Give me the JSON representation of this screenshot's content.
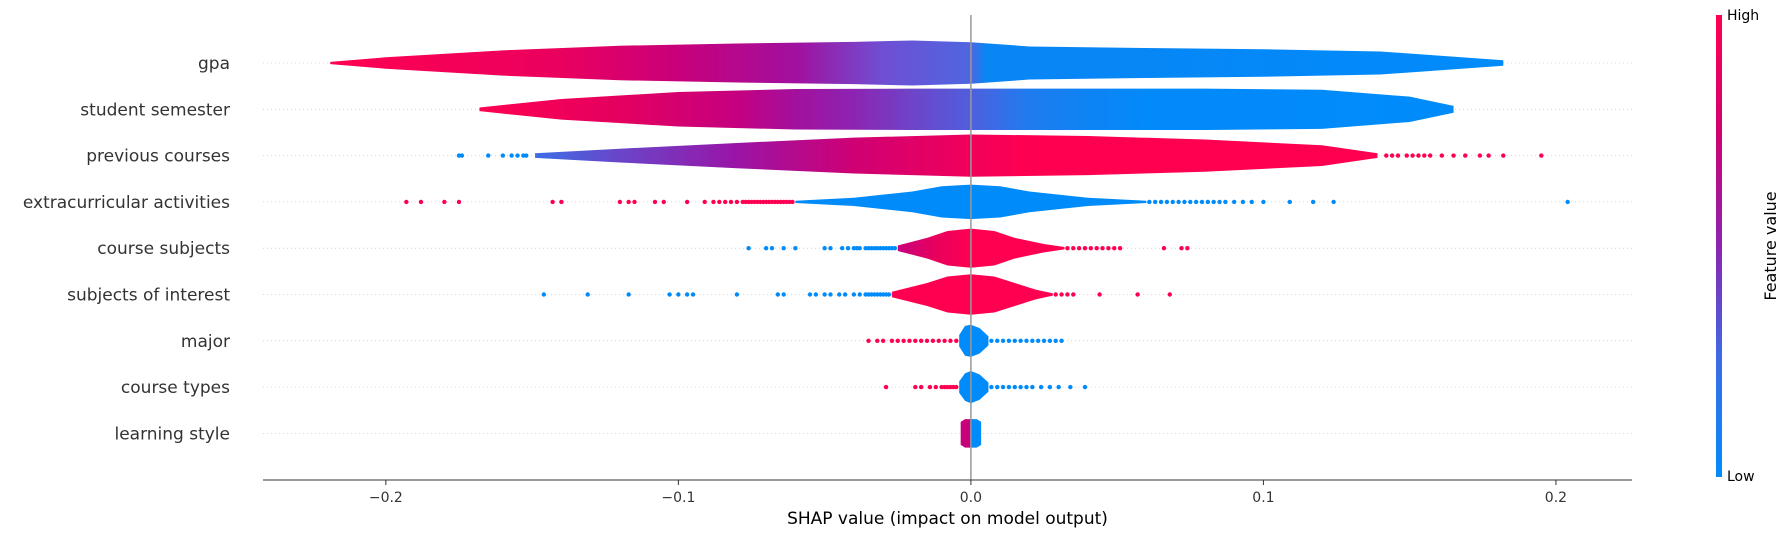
{
  "chart_data": {
    "type": "violin",
    "xlabel": "SHAP value (impact on model output)",
    "xlim": [
      -0.242,
      0.226
    ],
    "xticks": [
      -0.2,
      -0.1,
      0.0,
      0.1,
      0.2
    ],
    "xtick_labels": [
      "−0.2",
      "−0.1",
      "0.0",
      "0.1",
      "0.2"
    ],
    "colorbar": {
      "title": "Feature value",
      "high_label": "High",
      "low_label": "Low",
      "high_color": "#ff0051",
      "low_color": "#008bfb"
    },
    "features": [
      {
        "name": "gpa",
        "range": [
          -0.219,
          0.182
        ],
        "width": 0.98,
        "shape_x": [
          -0.219,
          -0.2,
          -0.16,
          -0.12,
          -0.08,
          -0.04,
          -0.02,
          0.0,
          0.02,
          0.06,
          0.1,
          0.14,
          0.182
        ],
        "shape_w": [
          0.05,
          0.25,
          0.55,
          0.75,
          0.85,
          0.92,
          0.98,
          0.9,
          0.72,
          0.65,
          0.6,
          0.5,
          0.12
        ],
        "colors": [
          [
            -0.219,
            "#ff0051"
          ],
          [
            -0.14,
            "#ea005e"
          ],
          [
            -0.1,
            "#c8007b"
          ],
          [
            -0.06,
            "#a1109e"
          ],
          [
            -0.03,
            "#6f4fd3"
          ],
          [
            0.0,
            "#4f66e0"
          ],
          [
            0.005,
            "#0a85f4"
          ],
          [
            0.182,
            "#008bfb"
          ]
        ],
        "points_low": [],
        "points_high": []
      },
      {
        "name": "student semester",
        "range": [
          -0.168,
          0.165
        ],
        "width": 0.9,
        "shape_x": [
          -0.168,
          -0.14,
          -0.1,
          -0.06,
          -0.02,
          0.0,
          0.04,
          0.08,
          0.12,
          0.15,
          0.165
        ],
        "shape_w": [
          0.08,
          0.45,
          0.75,
          0.88,
          0.9,
          0.9,
          0.9,
          0.9,
          0.85,
          0.55,
          0.15
        ],
        "colors": [
          [
            -0.168,
            "#ff0051"
          ],
          [
            -0.12,
            "#e4005f"
          ],
          [
            -0.08,
            "#c50080"
          ],
          [
            -0.06,
            "#a2109d"
          ],
          [
            -0.04,
            "#8d24b2"
          ],
          [
            -0.02,
            "#6e44c8"
          ],
          [
            0.0,
            "#4f5fde"
          ],
          [
            0.02,
            "#1f7cef"
          ],
          [
            0.04,
            "#0e83f4"
          ],
          [
            0.06,
            "#038afa"
          ],
          [
            0.165,
            "#008bfb"
          ]
        ],
        "points_low": [],
        "points_high": []
      },
      {
        "name": "previous courses",
        "range": [
          -0.149,
          0.139
        ],
        "width": 0.92,
        "shape_x": [
          -0.149,
          -0.12,
          -0.08,
          -0.04,
          0.0,
          0.04,
          0.08,
          0.12,
          0.139
        ],
        "shape_w": [
          0.1,
          0.3,
          0.55,
          0.78,
          0.92,
          0.85,
          0.7,
          0.45,
          0.1
        ],
        "colors": [
          [
            -0.149,
            "#3b6fe6"
          ],
          [
            -0.12,
            "#6a45c9"
          ],
          [
            -0.08,
            "#9a14a6"
          ],
          [
            -0.04,
            "#cf0074"
          ],
          [
            0.0,
            "#f1005a"
          ],
          [
            0.02,
            "#ff0051"
          ],
          [
            0.139,
            "#ff0051"
          ]
        ],
        "points_low": [
          -0.175,
          -0.174,
          -0.165,
          -0.16,
          -0.157,
          -0.155,
          -0.153,
          -0.152
        ],
        "points_high": [
          0.142,
          0.144,
          0.146,
          0.149,
          0.151,
          0.153,
          0.155,
          0.157,
          0.161,
          0.165,
          0.169,
          0.174,
          0.177,
          0.182,
          0.195
        ]
      },
      {
        "name": "extracurricular activities",
        "range": [
          -0.06,
          0.06
        ],
        "width": 0.75,
        "shape_x": [
          -0.06,
          -0.04,
          -0.02,
          -0.01,
          0.0,
          0.01,
          0.02,
          0.04,
          0.06
        ],
        "shape_w": [
          0.05,
          0.18,
          0.45,
          0.68,
          0.75,
          0.68,
          0.45,
          0.18,
          0.05
        ],
        "colors": [
          [
            -0.06,
            "#008bfb"
          ],
          [
            0.06,
            "#008bfb"
          ]
        ],
        "points_low": [
          0.061,
          0.063,
          0.065,
          0.067,
          0.069,
          0.071,
          0.073,
          0.075,
          0.077,
          0.079,
          0.081,
          0.083,
          0.085,
          0.087,
          0.09,
          0.093,
          0.096,
          0.1,
          0.109,
          0.117,
          0.124,
          0.204
        ],
        "points_high": [
          -0.193,
          -0.188,
          -0.18,
          -0.175,
          -0.143,
          -0.14,
          -0.12,
          -0.117,
          -0.115,
          -0.108,
          -0.105,
          -0.097,
          -0.091,
          -0.088,
          -0.086,
          -0.084,
          -0.082,
          -0.08,
          -0.078,
          -0.077,
          -0.076,
          -0.075,
          -0.074,
          -0.073,
          -0.072,
          -0.071,
          -0.07,
          -0.069,
          -0.068,
          -0.067,
          -0.066,
          -0.065,
          -0.064,
          -0.063,
          -0.062,
          -0.061
        ]
      },
      {
        "name": "course subjects",
        "range": [
          -0.025,
          0.032
        ],
        "width": 0.85,
        "shape_x": [
          -0.025,
          -0.015,
          -0.008,
          0.0,
          0.008,
          0.015,
          0.025,
          0.032
        ],
        "shape_w": [
          0.12,
          0.45,
          0.75,
          0.85,
          0.75,
          0.45,
          0.18,
          0.05
        ],
        "colors": [
          [
            -0.025,
            "#c8007b"
          ],
          [
            -0.012,
            "#e8005d"
          ],
          [
            0.0,
            "#ff0051"
          ],
          [
            0.032,
            "#ff0051"
          ]
        ],
        "points_low": [
          -0.076,
          -0.07,
          -0.068,
          -0.064,
          -0.06,
          -0.05,
          -0.048,
          -0.044,
          -0.042,
          -0.04,
          -0.039,
          -0.038,
          -0.036,
          -0.035,
          -0.034,
          -0.033,
          -0.032,
          -0.031,
          -0.03,
          -0.029,
          -0.028,
          -0.027,
          -0.026
        ],
        "points_high": [
          0.033,
          0.035,
          0.037,
          0.039,
          0.041,
          0.043,
          0.045,
          0.047,
          0.049,
          0.051,
          0.066,
          0.072,
          0.074
        ]
      },
      {
        "name": "subjects of interest",
        "range": [
          -0.027,
          0.028
        ],
        "width": 0.88,
        "shape_x": [
          -0.027,
          -0.015,
          -0.008,
          0.0,
          0.008,
          0.015,
          0.022,
          0.028
        ],
        "shape_w": [
          0.12,
          0.5,
          0.78,
          0.88,
          0.78,
          0.5,
          0.22,
          0.05
        ],
        "colors": [
          [
            -0.027,
            "#ff0051"
          ],
          [
            0.028,
            "#ff0051"
          ]
        ],
        "points_low": [
          -0.146,
          -0.131,
          -0.117,
          -0.103,
          -0.1,
          -0.097,
          -0.095,
          -0.08,
          -0.066,
          -0.064,
          -0.055,
          -0.053,
          -0.05,
          -0.048,
          -0.045,
          -0.043,
          -0.04,
          -0.038,
          -0.036,
          -0.035,
          -0.034,
          -0.033,
          -0.032,
          -0.031,
          -0.03,
          -0.029,
          -0.028
        ],
        "points_high": [
          0.029,
          0.031,
          0.033,
          0.035,
          0.044,
          0.057,
          0.068
        ]
      },
      {
        "name": "major",
        "range": [
          -0.004,
          0.006
        ],
        "width": 0.7,
        "shape_x": [
          -0.004,
          -0.002,
          0.0,
          0.003,
          0.006
        ],
        "shape_w": [
          0.25,
          0.65,
          0.7,
          0.55,
          0.2
        ],
        "colors": [
          [
            -0.004,
            "#008bfb"
          ],
          [
            0.006,
            "#008bfb"
          ]
        ],
        "points_low": [
          0.007,
          0.009,
          0.011,
          0.013,
          0.015,
          0.017,
          0.019,
          0.021,
          0.023,
          0.025,
          0.027,
          0.029,
          0.031
        ],
        "points_high": [
          -0.035,
          -0.032,
          -0.03,
          -0.027,
          -0.025,
          -0.023,
          -0.021,
          -0.019,
          -0.017,
          -0.015,
          -0.013,
          -0.011,
          -0.009,
          -0.007,
          -0.005
        ]
      },
      {
        "name": "course types",
        "range": [
          -0.004,
          0.006
        ],
        "width": 0.7,
        "shape_x": [
          -0.004,
          -0.002,
          0.0,
          0.003,
          0.006
        ],
        "shape_w": [
          0.25,
          0.6,
          0.7,
          0.55,
          0.2
        ],
        "colors": [
          [
            -0.004,
            "#008bfb"
          ],
          [
            0.006,
            "#008bfb"
          ]
        ],
        "points_low": [
          0.007,
          0.009,
          0.011,
          0.013,
          0.015,
          0.017,
          0.019,
          0.021,
          0.024,
          0.027,
          0.03,
          0.034,
          0.039
        ],
        "points_high": [
          -0.029,
          -0.019,
          -0.017,
          -0.014,
          -0.012,
          -0.01,
          -0.009,
          -0.008,
          -0.007,
          -0.006,
          -0.005
        ]
      },
      {
        "name": "learning style",
        "range": [
          -0.0035,
          0.0035
        ],
        "width": 0.62,
        "shape_x": [
          -0.0035,
          -0.002,
          0.0,
          0.002,
          0.0035
        ],
        "shape_w": [
          0.5,
          0.62,
          0.62,
          0.62,
          0.5
        ],
        "colors": [
          [
            -0.0035,
            "#c8007b"
          ],
          [
            -0.0005,
            "#c8007b"
          ],
          [
            0.0005,
            "#008bfb"
          ],
          [
            0.0035,
            "#008bfb"
          ]
        ],
        "points_low": [],
        "points_high": []
      }
    ]
  }
}
